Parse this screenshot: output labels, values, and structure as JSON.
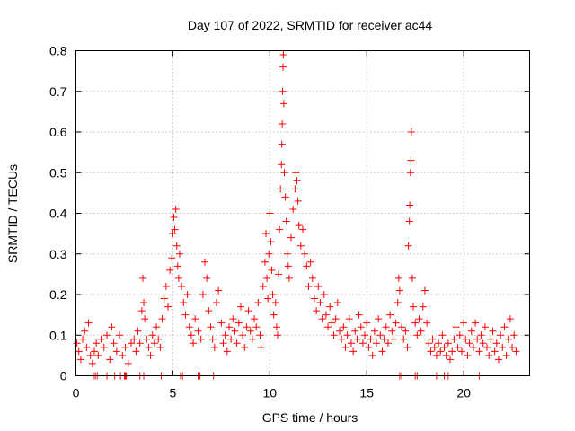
{
  "chart_data": {
    "type": "scatter",
    "title": "Day 107 of 2022, SRMTID for receiver ac44",
    "xlabel": "GPS time / hours",
    "ylabel": "SRMTID / TECUs",
    "xlim": [
      0,
      23.4
    ],
    "ylim": [
      0,
      0.8
    ],
    "xticks": [
      0,
      5,
      10,
      15,
      20
    ],
    "xtick_labels": [
      "0",
      "5",
      "10",
      "15",
      "20"
    ],
    "yticks": [
      0,
      0.1,
      0.2,
      0.3,
      0.4,
      0.5,
      0.6,
      0.7,
      0.8
    ],
    "ytick_labels": [
      "0",
      "0.1",
      "0.2",
      "0.3",
      "0.4",
      "0.5",
      "0.6",
      "0.7",
      "0.8"
    ],
    "grid": true,
    "marker": "+",
    "color": "#ff0000",
    "series": [
      {
        "name": "SRMTID",
        "points": [
          [
            0.05,
            0.08
          ],
          [
            0.15,
            0.06
          ],
          [
            0.25,
            0.04
          ],
          [
            0.35,
            0.09
          ],
          [
            0.45,
            0.11
          ],
          [
            0.55,
            0.07
          ],
          [
            0.65,
            0.13
          ],
          [
            0.75,
            0.05
          ],
          [
            0.85,
            0.03
          ],
          [
            0.95,
            0.06
          ],
          [
            1.05,
            0.08
          ],
          [
            1.15,
            0.05
          ],
          [
            1.3,
            0.09
          ],
          [
            1.45,
            0.07
          ],
          [
            1.6,
            0.1
          ],
          [
            1.75,
            0.04
          ],
          [
            1.85,
            0.12
          ],
          [
            1.95,
            0.08
          ],
          [
            2.1,
            0.06
          ],
          [
            2.25,
            0.1
          ],
          [
            2.4,
            0.05
          ],
          [
            2.55,
            0.07
          ],
          [
            2.7,
            0.03
          ],
          [
            2.85,
            0.08
          ],
          [
            3.0,
            0.09
          ],
          [
            3.1,
            0.06
          ],
          [
            3.2,
            0.11
          ],
          [
            3.3,
            0.08
          ],
          [
            3.4,
            0.16
          ],
          [
            3.45,
            0.24
          ],
          [
            3.5,
            0.18
          ],
          [
            3.55,
            0.14
          ],
          [
            3.65,
            0.09
          ],
          [
            3.75,
            0.07
          ],
          [
            3.85,
            0.05
          ],
          [
            3.95,
            0.1
          ],
          [
            4.05,
            0.08
          ],
          [
            4.15,
            0.12
          ],
          [
            4.25,
            0.09
          ],
          [
            4.35,
            0.07
          ],
          [
            4.45,
            0.14
          ],
          [
            4.55,
            0.19
          ],
          [
            4.65,
            0.22
          ],
          [
            4.75,
            0.17
          ],
          [
            4.85,
            0.26
          ],
          [
            4.95,
            0.29
          ],
          [
            5.0,
            0.35
          ],
          [
            5.05,
            0.39
          ],
          [
            5.1,
            0.36
          ],
          [
            5.15,
            0.41
          ],
          [
            5.2,
            0.32
          ],
          [
            5.25,
            0.27
          ],
          [
            5.3,
            0.24
          ],
          [
            5.35,
            0.3
          ],
          [
            5.45,
            0.22
          ],
          [
            5.55,
            0.18
          ],
          [
            5.65,
            0.15
          ],
          [
            5.75,
            0.2
          ],
          [
            5.85,
            0.12
          ],
          [
            5.95,
            0.1
          ],
          [
            6.05,
            0.08
          ],
          [
            6.15,
            0.14
          ],
          [
            6.3,
            0.11
          ],
          [
            6.45,
            0.09
          ],
          [
            6.55,
            0.2
          ],
          [
            6.65,
            0.28
          ],
          [
            6.75,
            0.24
          ],
          [
            6.85,
            0.16
          ],
          [
            6.95,
            0.12
          ],
          [
            7.05,
            0.09
          ],
          [
            7.15,
            0.07
          ],
          [
            7.25,
            0.18
          ],
          [
            7.35,
            0.21
          ],
          [
            7.5,
            0.13
          ],
          [
            7.6,
            0.08
          ],
          [
            7.7,
            0.1
          ],
          [
            7.8,
            0.06
          ],
          [
            7.9,
            0.12
          ],
          [
            8.0,
            0.09
          ],
          [
            8.1,
            0.14
          ],
          [
            8.2,
            0.11
          ],
          [
            8.3,
            0.08
          ],
          [
            8.4,
            0.13
          ],
          [
            8.5,
            0.17
          ],
          [
            8.6,
            0.1
          ],
          [
            8.7,
            0.07
          ],
          [
            8.8,
            0.12
          ],
          [
            8.9,
            0.16
          ],
          [
            9.0,
            0.11
          ],
          [
            9.1,
            0.09
          ],
          [
            9.2,
            0.14
          ],
          [
            9.3,
            0.12
          ],
          [
            9.4,
            0.18
          ],
          [
            9.5,
            0.1
          ],
          [
            9.55,
            0.07
          ],
          [
            9.65,
            0.22
          ],
          [
            9.75,
            0.28
          ],
          [
            9.8,
            0.35
          ],
          [
            9.85,
            0.24
          ],
          [
            9.9,
            0.19
          ],
          [
            9.95,
            0.3
          ],
          [
            10.0,
            0.4
          ],
          [
            10.05,
            0.33
          ],
          [
            10.1,
            0.26
          ],
          [
            10.15,
            0.2
          ],
          [
            10.2,
            0.15
          ],
          [
            10.3,
            0.18
          ],
          [
            10.35,
            0.12
          ],
          [
            10.4,
            0.1
          ],
          [
            10.45,
            0.25
          ],
          [
            10.5,
            0.36
          ],
          [
            10.55,
            0.46
          ],
          [
            10.6,
            0.52
          ],
          [
            10.62,
            0.57
          ],
          [
            10.64,
            0.62
          ],
          [
            10.66,
            0.7
          ],
          [
            10.68,
            0.76
          ],
          [
            10.7,
            0.79
          ],
          [
            10.72,
            0.67
          ],
          [
            10.75,
            0.5
          ],
          [
            10.8,
            0.44
          ],
          [
            10.85,
            0.38
          ],
          [
            10.9,
            0.3
          ],
          [
            10.95,
            0.27
          ],
          [
            11.0,
            0.24
          ],
          [
            11.1,
            0.34
          ],
          [
            11.2,
            0.41
          ],
          [
            11.3,
            0.46
          ],
          [
            11.35,
            0.5
          ],
          [
            11.4,
            0.48
          ],
          [
            11.45,
            0.43
          ],
          [
            11.5,
            0.37
          ],
          [
            11.6,
            0.32
          ],
          [
            11.7,
            0.36
          ],
          [
            11.8,
            0.3
          ],
          [
            11.9,
            0.27
          ],
          [
            12.0,
            0.22
          ],
          [
            12.1,
            0.28
          ],
          [
            12.2,
            0.24
          ],
          [
            12.3,
            0.19
          ],
          [
            12.4,
            0.16
          ],
          [
            12.5,
            0.22
          ],
          [
            12.6,
            0.18
          ],
          [
            12.7,
            0.14
          ],
          [
            12.8,
            0.2
          ],
          [
            12.9,
            0.15
          ],
          [
            13.0,
            0.12
          ],
          [
            13.1,
            0.17
          ],
          [
            13.2,
            0.13
          ],
          [
            13.3,
            0.1
          ],
          [
            13.4,
            0.14
          ],
          [
            13.5,
            0.18
          ],
          [
            13.6,
            0.11
          ],
          [
            13.7,
            0.09
          ],
          [
            13.8,
            0.12
          ],
          [
            13.9,
            0.07
          ],
          [
            14.0,
            0.1
          ],
          [
            14.1,
            0.14
          ],
          [
            14.2,
            0.08
          ],
          [
            14.3,
            0.06
          ],
          [
            14.4,
            0.11
          ],
          [
            14.5,
            0.09
          ],
          [
            14.6,
            0.15
          ],
          [
            14.7,
            0.12
          ],
          [
            14.8,
            0.08
          ],
          [
            14.9,
            0.1
          ],
          [
            15.0,
            0.13
          ],
          [
            15.1,
            0.07
          ],
          [
            15.2,
            0.09
          ],
          [
            15.3,
            0.05
          ],
          [
            15.4,
            0.11
          ],
          [
            15.5,
            0.08
          ],
          [
            15.6,
            0.14
          ],
          [
            15.7,
            0.1
          ],
          [
            15.8,
            0.06
          ],
          [
            15.9,
            0.09
          ],
          [
            16.0,
            0.12
          ],
          [
            16.1,
            0.08
          ],
          [
            16.2,
            0.15
          ],
          [
            16.3,
            0.11
          ],
          [
            16.4,
            0.09
          ],
          [
            16.5,
            0.13
          ],
          [
            16.6,
            0.18
          ],
          [
            16.65,
            0.24
          ],
          [
            16.7,
            0.21
          ],
          [
            16.8,
            0.12
          ],
          [
            16.9,
            0.09
          ],
          [
            17.0,
            0.11
          ],
          [
            17.1,
            0.07
          ],
          [
            17.15,
            0.32
          ],
          [
            17.2,
            0.38
          ],
          [
            17.22,
            0.42
          ],
          [
            17.25,
            0.5
          ],
          [
            17.28,
            0.53
          ],
          [
            17.3,
            0.6
          ],
          [
            17.35,
            0.24
          ],
          [
            17.4,
            0.17
          ],
          [
            17.5,
            0.13
          ],
          [
            17.6,
            0.1
          ],
          [
            17.7,
            0.14
          ],
          [
            17.8,
            0.11
          ],
          [
            17.9,
            0.17
          ],
          [
            18.0,
            0.21
          ],
          [
            18.1,
            0.13
          ],
          [
            18.2,
            0.08
          ],
          [
            18.3,
            0.06
          ],
          [
            18.4,
            0.09
          ],
          [
            18.5,
            0.07
          ],
          [
            18.6,
            0.05
          ],
          [
            18.7,
            0.08
          ],
          [
            18.8,
            0.06
          ],
          [
            18.9,
            0.1
          ],
          [
            19.0,
            0.07
          ],
          [
            19.1,
            0.05
          ],
          [
            19.2,
            0.08
          ],
          [
            19.3,
            0.04
          ],
          [
            19.4,
            0.06
          ],
          [
            19.5,
            0.09
          ],
          [
            19.6,
            0.12
          ],
          [
            19.7,
            0.07
          ],
          [
            19.8,
            0.1
          ],
          [
            19.9,
            0.06
          ],
          [
            20.0,
            0.13
          ],
          [
            20.1,
            0.09
          ],
          [
            20.2,
            0.05
          ],
          [
            20.3,
            0.08
          ],
          [
            20.4,
            0.11
          ],
          [
            20.5,
            0.07
          ],
          [
            20.6,
            0.13
          ],
          [
            20.7,
            0.09
          ],
          [
            20.8,
            0.06
          ],
          [
            20.9,
            0.1
          ],
          [
            21.0,
            0.08
          ],
          [
            21.1,
            0.12
          ],
          [
            21.2,
            0.07
          ],
          [
            21.3,
            0.05
          ],
          [
            21.4,
            0.09
          ],
          [
            21.5,
            0.11
          ],
          [
            21.6,
            0.06
          ],
          [
            21.7,
            0.08
          ],
          [
            21.8,
            0.04
          ],
          [
            21.9,
            0.1
          ],
          [
            22.0,
            0.07
          ],
          [
            22.1,
            0.12
          ],
          [
            22.2,
            0.05
          ],
          [
            22.3,
            0.09
          ],
          [
            22.4,
            0.14
          ],
          [
            22.5,
            0.07
          ],
          [
            22.6,
            0.1
          ],
          [
            22.7,
            0.06
          ],
          [
            0.9,
            0.0
          ],
          [
            1.0,
            0.0
          ],
          [
            1.1,
            0.0
          ],
          [
            1.6,
            0.0
          ],
          [
            2.0,
            0.0
          ],
          [
            2.3,
            0.0
          ],
          [
            2.5,
            0.0
          ],
          [
            2.55,
            0.0
          ],
          [
            2.6,
            0.0
          ],
          [
            3.3,
            0.0
          ],
          [
            3.5,
            0.0
          ],
          [
            4.4,
            0.0
          ],
          [
            5.4,
            0.0
          ],
          [
            5.5,
            0.0
          ],
          [
            6.3,
            0.0
          ],
          [
            6.4,
            0.0
          ],
          [
            7.1,
            0.0
          ],
          [
            16.7,
            0.0
          ],
          [
            16.8,
            0.0
          ],
          [
            17.5,
            0.0
          ],
          [
            17.6,
            0.0
          ],
          [
            18.6,
            0.0
          ],
          [
            19.0,
            0.0
          ],
          [
            19.2,
            0.0
          ],
          [
            20.8,
            0.0
          ]
        ]
      }
    ]
  }
}
